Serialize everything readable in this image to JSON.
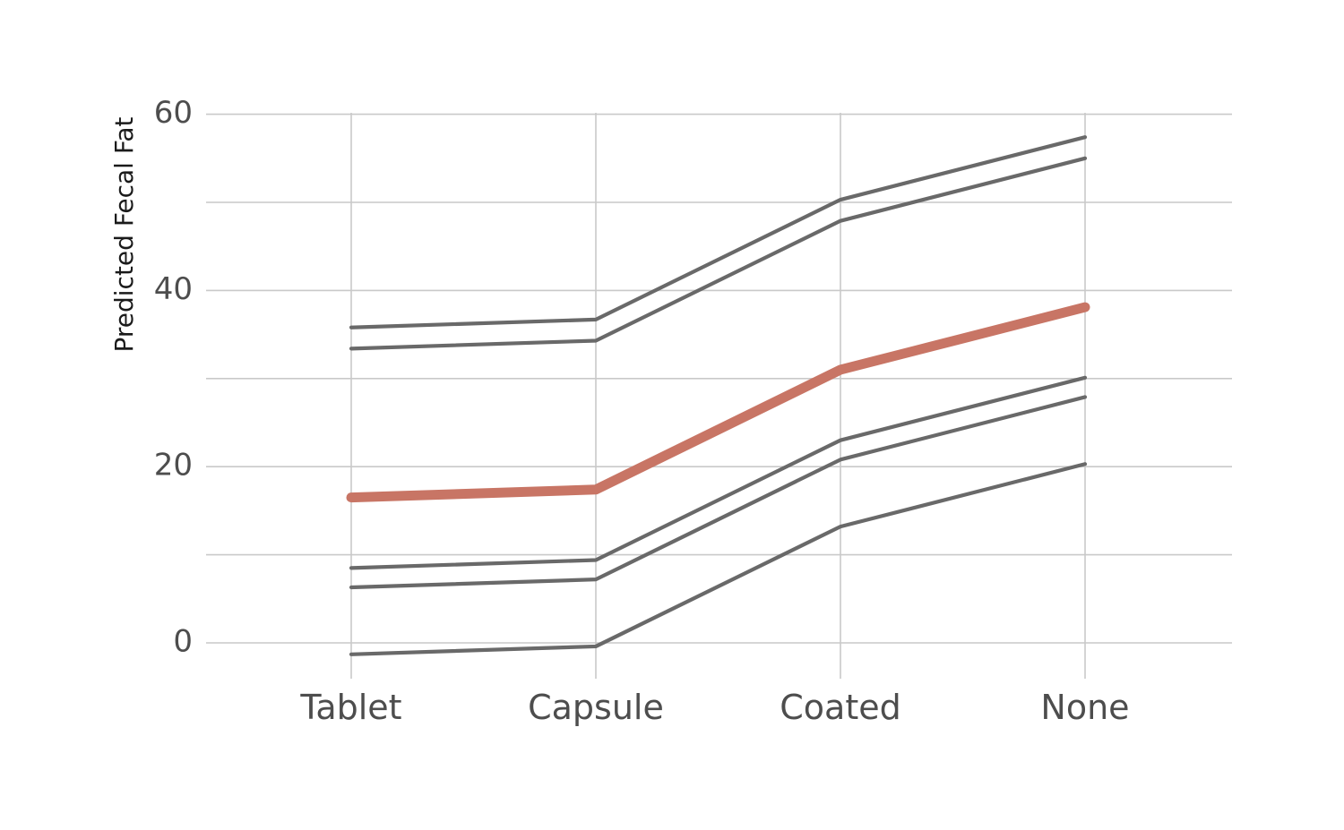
{
  "chart_data": {
    "type": "line",
    "title": "",
    "xlabel": "",
    "ylabel": "Predicted Fecal Fat",
    "categories": [
      "Tablet",
      "Capsule",
      "Coated",
      "None"
    ],
    "ylim": [
      -4,
      62
    ],
    "yticks": [
      0,
      20,
      40,
      60
    ],
    "grid": true,
    "legend": "none",
    "series": [
      {
        "values": [
          35.8,
          36.7,
          50.3,
          57.4
        ],
        "color": "#696969",
        "highlight": false
      },
      {
        "values": [
          33.4,
          34.3,
          47.9,
          55.0
        ],
        "color": "#696969",
        "highlight": false
      },
      {
        "values": [
          16.5,
          17.4,
          31.0,
          38.1
        ],
        "color": "#c87565",
        "highlight": true
      },
      {
        "values": [
          8.5,
          9.4,
          23.0,
          30.1
        ],
        "color": "#696969",
        "highlight": false
      },
      {
        "values": [
          6.3,
          7.2,
          20.8,
          27.9
        ],
        "color": "#696969",
        "highlight": false
      },
      {
        "values": [
          -1.3,
          -0.4,
          13.2,
          20.3
        ],
        "color": "#696969",
        "highlight": false
      }
    ]
  }
}
